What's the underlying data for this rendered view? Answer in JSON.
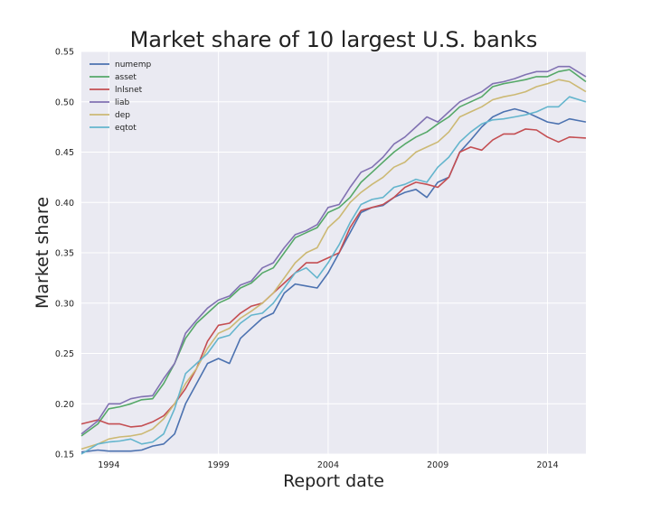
{
  "chart_data": {
    "type": "line",
    "title": "Market share of 10 largest U.S. banks",
    "xlabel": "Report date",
    "ylabel": "Market share",
    "xlim": [
      1992.75,
      2015.75
    ],
    "ylim": [
      0.15,
      0.55
    ],
    "xticks": [
      1994,
      1999,
      2004,
      2009,
      2014
    ],
    "xtick_labels": [
      "1994",
      "1999",
      "2004",
      "2009",
      "2014"
    ],
    "yticks": [
      0.15,
      0.2,
      0.25,
      0.3,
      0.35,
      0.4,
      0.45,
      0.5,
      0.55
    ],
    "ytick_labels": [
      "0.15",
      "0.20",
      "0.25",
      "0.30",
      "0.35",
      "0.40",
      "0.45",
      "0.50",
      "0.55"
    ],
    "grid": true,
    "legend_position": "top-left",
    "series": [
      {
        "name": "numemp",
        "color": "#4c72b0",
        "x": [
          1992.75,
          1993.5,
          1994,
          1994.5,
          1995,
          1995.5,
          1996,
          1996.5,
          1997,
          1997.5,
          1998,
          1998.5,
          1999,
          1999.5,
          2000,
          2000.5,
          2001,
          2001.5,
          2002,
          2002.5,
          2003,
          2003.5,
          2004,
          2004.5,
          2005,
          2005.5,
          2006,
          2006.5,
          2007,
          2007.5,
          2008,
          2008.5,
          2009,
          2009.5,
          2010,
          2010.5,
          2011,
          2011.5,
          2012,
          2012.5,
          2013,
          2013.5,
          2014,
          2014.5,
          2015,
          2015.75
        ],
        "y": [
          0.152,
          0.154,
          0.153,
          0.153,
          0.153,
          0.154,
          0.158,
          0.16,
          0.17,
          0.2,
          0.22,
          0.24,
          0.245,
          0.24,
          0.265,
          0.275,
          0.285,
          0.29,
          0.31,
          0.319,
          0.317,
          0.315,
          0.33,
          0.35,
          0.37,
          0.39,
          0.395,
          0.397,
          0.405,
          0.41,
          0.413,
          0.405,
          0.42,
          0.425,
          0.45,
          0.462,
          0.475,
          0.485,
          0.49,
          0.493,
          0.49,
          0.485,
          0.48,
          0.478,
          0.483,
          0.48
        ]
      },
      {
        "name": "asset",
        "color": "#55a868",
        "x": [
          1992.75,
          1993.5,
          1994,
          1994.5,
          1995,
          1995.5,
          1996,
          1996.5,
          1997,
          1997.5,
          1998,
          1998.5,
          1999,
          1999.5,
          2000,
          2000.5,
          2001,
          2001.5,
          2002,
          2002.5,
          2003,
          2003.5,
          2004,
          2004.5,
          2005,
          2005.5,
          2006,
          2006.5,
          2007,
          2007.5,
          2008,
          2008.5,
          2009,
          2009.5,
          2010,
          2010.5,
          2011,
          2011.5,
          2012,
          2012.5,
          2013,
          2013.5,
          2014,
          2014.5,
          2015,
          2015.75
        ],
        "y": [
          0.168,
          0.18,
          0.195,
          0.197,
          0.2,
          0.204,
          0.205,
          0.22,
          0.24,
          0.265,
          0.28,
          0.29,
          0.3,
          0.305,
          0.315,
          0.32,
          0.33,
          0.335,
          0.35,
          0.365,
          0.37,
          0.375,
          0.39,
          0.395,
          0.405,
          0.42,
          0.43,
          0.44,
          0.45,
          0.458,
          0.465,
          0.47,
          0.478,
          0.485,
          0.495,
          0.5,
          0.505,
          0.515,
          0.518,
          0.52,
          0.522,
          0.525,
          0.525,
          0.53,
          0.532,
          0.52
        ]
      },
      {
        "name": "lnlsnet",
        "color": "#c44e52",
        "x": [
          1992.75,
          1993.5,
          1994,
          1994.5,
          1995,
          1995.5,
          1996,
          1996.5,
          1997,
          1997.5,
          1998,
          1998.5,
          1999,
          1999.5,
          2000,
          2000.5,
          2001,
          2001.5,
          2002,
          2002.5,
          2003,
          2003.5,
          2004,
          2004.5,
          2005,
          2005.5,
          2006,
          2006.5,
          2007,
          2007.5,
          2008,
          2008.5,
          2009,
          2009.5,
          2010,
          2010.5,
          2011,
          2011.5,
          2012,
          2012.5,
          2013,
          2013.5,
          2014,
          2014.5,
          2015,
          2015.75
        ],
        "y": [
          0.18,
          0.184,
          0.18,
          0.18,
          0.177,
          0.178,
          0.182,
          0.188,
          0.2,
          0.215,
          0.235,
          0.262,
          0.278,
          0.28,
          0.29,
          0.297,
          0.3,
          0.31,
          0.32,
          0.33,
          0.34,
          0.34,
          0.345,
          0.35,
          0.375,
          0.392,
          0.395,
          0.398,
          0.405,
          0.415,
          0.42,
          0.418,
          0.415,
          0.425,
          0.45,
          0.455,
          0.452,
          0.462,
          0.468,
          0.468,
          0.473,
          0.472,
          0.465,
          0.46,
          0.465,
          0.464
        ]
      },
      {
        "name": "liab",
        "color": "#8172b2",
        "x": [
          1992.75,
          1993.5,
          1994,
          1994.5,
          1995,
          1995.5,
          1996,
          1996.5,
          1997,
          1997.5,
          1998,
          1998.5,
          1999,
          1999.5,
          2000,
          2000.5,
          2001,
          2001.5,
          2002,
          2002.5,
          2003,
          2003.5,
          2004,
          2004.5,
          2005,
          2005.5,
          2006,
          2006.5,
          2007,
          2007.5,
          2008,
          2008.5,
          2009,
          2009.5,
          2010,
          2010.5,
          2011,
          2011.5,
          2012,
          2012.5,
          2013,
          2013.5,
          2014,
          2014.5,
          2015,
          2015.75
        ],
        "y": [
          0.17,
          0.183,
          0.2,
          0.2,
          0.205,
          0.207,
          0.208,
          0.225,
          0.24,
          0.27,
          0.283,
          0.295,
          0.303,
          0.307,
          0.318,
          0.322,
          0.335,
          0.34,
          0.355,
          0.368,
          0.372,
          0.378,
          0.395,
          0.398,
          0.415,
          0.43,
          0.435,
          0.445,
          0.458,
          0.465,
          0.475,
          0.485,
          0.48,
          0.49,
          0.5,
          0.505,
          0.51,
          0.518,
          0.52,
          0.523,
          0.527,
          0.53,
          0.53,
          0.535,
          0.535,
          0.525
        ]
      },
      {
        "name": "dep",
        "color": "#ccb974",
        "x": [
          1992.75,
          1993.5,
          1994,
          1994.5,
          1995,
          1995.5,
          1996,
          1996.5,
          1997,
          1997.5,
          1998,
          1998.5,
          1999,
          1999.5,
          2000,
          2000.5,
          2001,
          2001.5,
          2002,
          2002.5,
          2003,
          2003.5,
          2004,
          2004.5,
          2005,
          2005.5,
          2006,
          2006.5,
          2007,
          2007.5,
          2008,
          2008.5,
          2009,
          2009.5,
          2010,
          2010.5,
          2011,
          2011.5,
          2012,
          2012.5,
          2013,
          2013.5,
          2014,
          2014.5,
          2015,
          2015.75
        ],
        "y": [
          0.155,
          0.16,
          0.165,
          0.167,
          0.168,
          0.17,
          0.175,
          0.185,
          0.2,
          0.22,
          0.235,
          0.255,
          0.27,
          0.275,
          0.285,
          0.292,
          0.3,
          0.31,
          0.325,
          0.34,
          0.35,
          0.355,
          0.375,
          0.385,
          0.4,
          0.41,
          0.418,
          0.425,
          0.435,
          0.44,
          0.45,
          0.455,
          0.46,
          0.47,
          0.485,
          0.49,
          0.495,
          0.502,
          0.505,
          0.507,
          0.51,
          0.515,
          0.518,
          0.522,
          0.52,
          0.51
        ]
      },
      {
        "name": "eqtot",
        "color": "#64b5cd",
        "x": [
          1992.75,
          1993.5,
          1994,
          1994.5,
          1995,
          1995.5,
          1996,
          1996.5,
          1997,
          1997.5,
          1998,
          1998.5,
          1999,
          1999.5,
          2000,
          2000.5,
          2001,
          2001.5,
          2002,
          2002.5,
          2003,
          2003.5,
          2004,
          2004.5,
          2005,
          2005.5,
          2006,
          2006.5,
          2007,
          2007.5,
          2008,
          2008.5,
          2009,
          2009.5,
          2010,
          2010.5,
          2011,
          2011.5,
          2012,
          2012.5,
          2013,
          2013.5,
          2014,
          2014.5,
          2015,
          2015.75
        ],
        "y": [
          0.15,
          0.16,
          0.162,
          0.163,
          0.165,
          0.16,
          0.162,
          0.17,
          0.195,
          0.23,
          0.24,
          0.25,
          0.265,
          0.268,
          0.28,
          0.288,
          0.29,
          0.3,
          0.315,
          0.33,
          0.335,
          0.325,
          0.34,
          0.358,
          0.38,
          0.398,
          0.403,
          0.405,
          0.415,
          0.418,
          0.423,
          0.42,
          0.435,
          0.445,
          0.46,
          0.47,
          0.478,
          0.482,
          0.483,
          0.485,
          0.487,
          0.49,
          0.495,
          0.495,
          0.505,
          0.5
        ]
      }
    ]
  }
}
